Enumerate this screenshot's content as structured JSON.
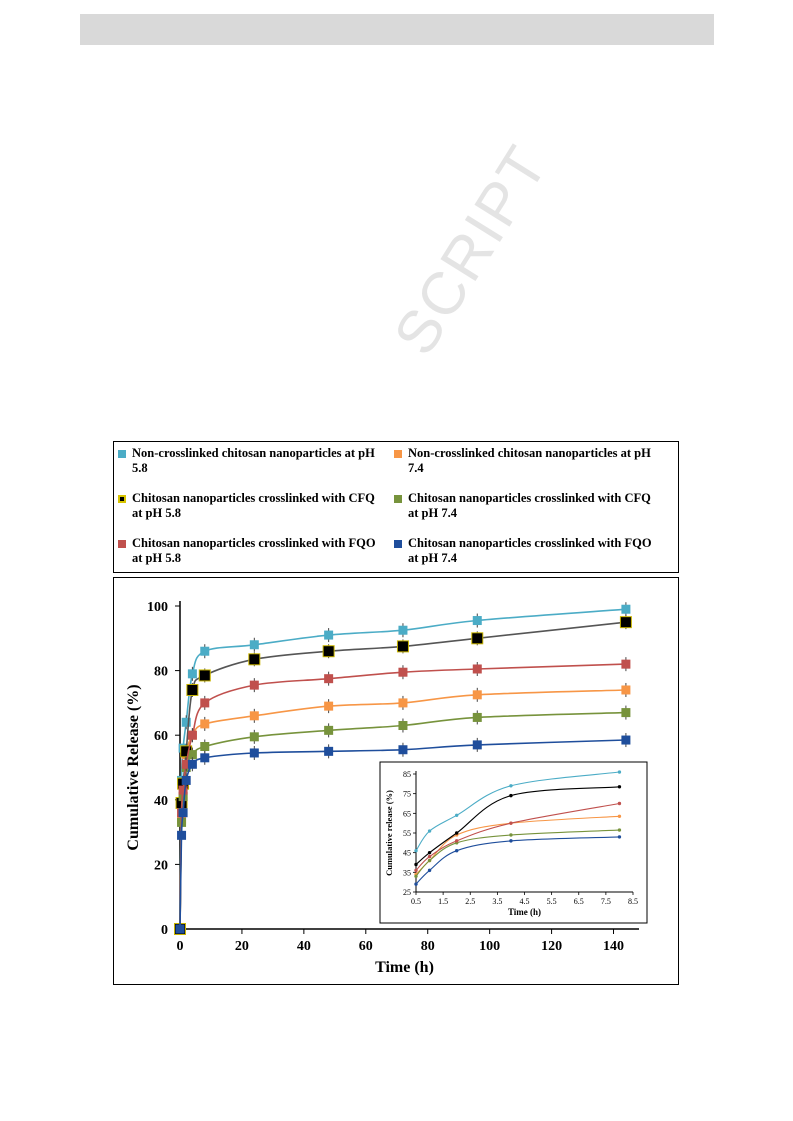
{
  "watermark": "SCRIPT",
  "legend": [
    {
      "label": "Non-crosslinked chitosan nanoparticles at pH 5.8",
      "color": "#4bacc6",
      "marker": "square"
    },
    {
      "label": "Non-crosslinked chitosan nanoparticles at pH 7.4",
      "color": "#f79646",
      "marker": "square"
    },
    {
      "label": "Chitosan nanoparticles crosslinked with CFQ at pH 5.8",
      "color": "#000000",
      "marker": "square-outlined"
    },
    {
      "label": "Chitosan nanoparticles crosslinked with CFQ at pH 7.4",
      "color": "#77933c",
      "marker": "square"
    },
    {
      "label": "Chitosan nanoparticles crosslinked with FQO at pH 5.8",
      "color": "#c0504d",
      "marker": "square"
    },
    {
      "label": "Chitosan nanoparticles crosslinked with FQO at pH 7.4",
      "color": "#1f4e9c",
      "marker": "square"
    }
  ],
  "chart_data": [
    {
      "type": "line",
      "xlabel": "Time (h)",
      "ylabel": "Cumulative Release (%)",
      "xlim": [
        0,
        145
      ],
      "ylim": [
        0,
        100
      ],
      "xticks": [
        0,
        20,
        40,
        60,
        80,
        100,
        120,
        140
      ],
      "yticks": [
        0,
        20,
        40,
        60,
        80,
        100
      ],
      "x": [
        0,
        0.5,
        1,
        2,
        4,
        8,
        24,
        48,
        72,
        96,
        144
      ],
      "series": [
        {
          "name": "Non-crosslinked chitosan nanoparticles at pH 5.8",
          "color": "#4bacc6",
          "values": [
            0,
            46,
            56,
            64,
            79,
            86,
            88,
            91,
            92.5,
            95.5,
            99
          ]
        },
        {
          "name": "Non-crosslinked chitosan nanoparticles at pH 7.4",
          "color": "#f79646",
          "values": [
            0,
            34,
            41,
            54,
            60,
            63.5,
            66,
            69,
            70,
            72.5,
            74
          ]
        },
        {
          "name": "Chitosan nanoparticles crosslinked with CFQ at pH 5.8",
          "color": "#000000",
          "values": [
            0,
            39,
            45,
            55,
            74,
            78.5,
            83.5,
            86,
            87.5,
            90,
            95
          ]
        },
        {
          "name": "Chitosan nanoparticles crosslinked with CFQ at pH 7.4",
          "color": "#77933c",
          "values": [
            0,
            33,
            41,
            50,
            54,
            56.5,
            59.5,
            61.5,
            63,
            65.5,
            67
          ]
        },
        {
          "name": "Chitosan nanoparticles crosslinked with FQO at pH 5.8",
          "color": "#c0504d",
          "values": [
            0,
            36,
            43,
            51,
            60,
            70,
            75.5,
            77.5,
            79.5,
            80.5,
            82
          ]
        },
        {
          "name": "Chitosan nanoparticles crosslinked with FQO at pH 7.4",
          "color": "#1f4e9c",
          "values": [
            0,
            29,
            36,
            46,
            51,
            53,
            54.5,
            55,
            55.5,
            57,
            58.5
          ]
        }
      ]
    },
    {
      "type": "line",
      "xlabel": "Time (h)",
      "ylabel": "Cumulative release (%)",
      "xlim": [
        0.5,
        8.5
      ],
      "ylim": [
        25,
        85
      ],
      "xticks": [
        0.5,
        1.5,
        2.5,
        3.5,
        4.5,
        5.5,
        6.5,
        7.5,
        8.5
      ],
      "yticks": [
        25,
        35,
        45,
        55,
        65,
        75,
        85
      ],
      "x": [
        0.5,
        1,
        2,
        4,
        8
      ],
      "series": [
        {
          "color": "#4bacc6",
          "values": [
            46,
            56,
            64,
            79,
            86
          ]
        },
        {
          "color": "#f79646",
          "values": [
            34,
            41,
            54,
            60,
            63.5
          ]
        },
        {
          "color": "#000000",
          "values": [
            39,
            45,
            55,
            74,
            78.5
          ]
        },
        {
          "color": "#77933c",
          "values": [
            33,
            41,
            50,
            54,
            56.5
          ]
        },
        {
          "color": "#c0504d",
          "values": [
            36,
            43,
            51,
            60,
            70
          ]
        },
        {
          "color": "#1f4e9c",
          "values": [
            29,
            36,
            46,
            51,
            53
          ]
        }
      ]
    }
  ]
}
